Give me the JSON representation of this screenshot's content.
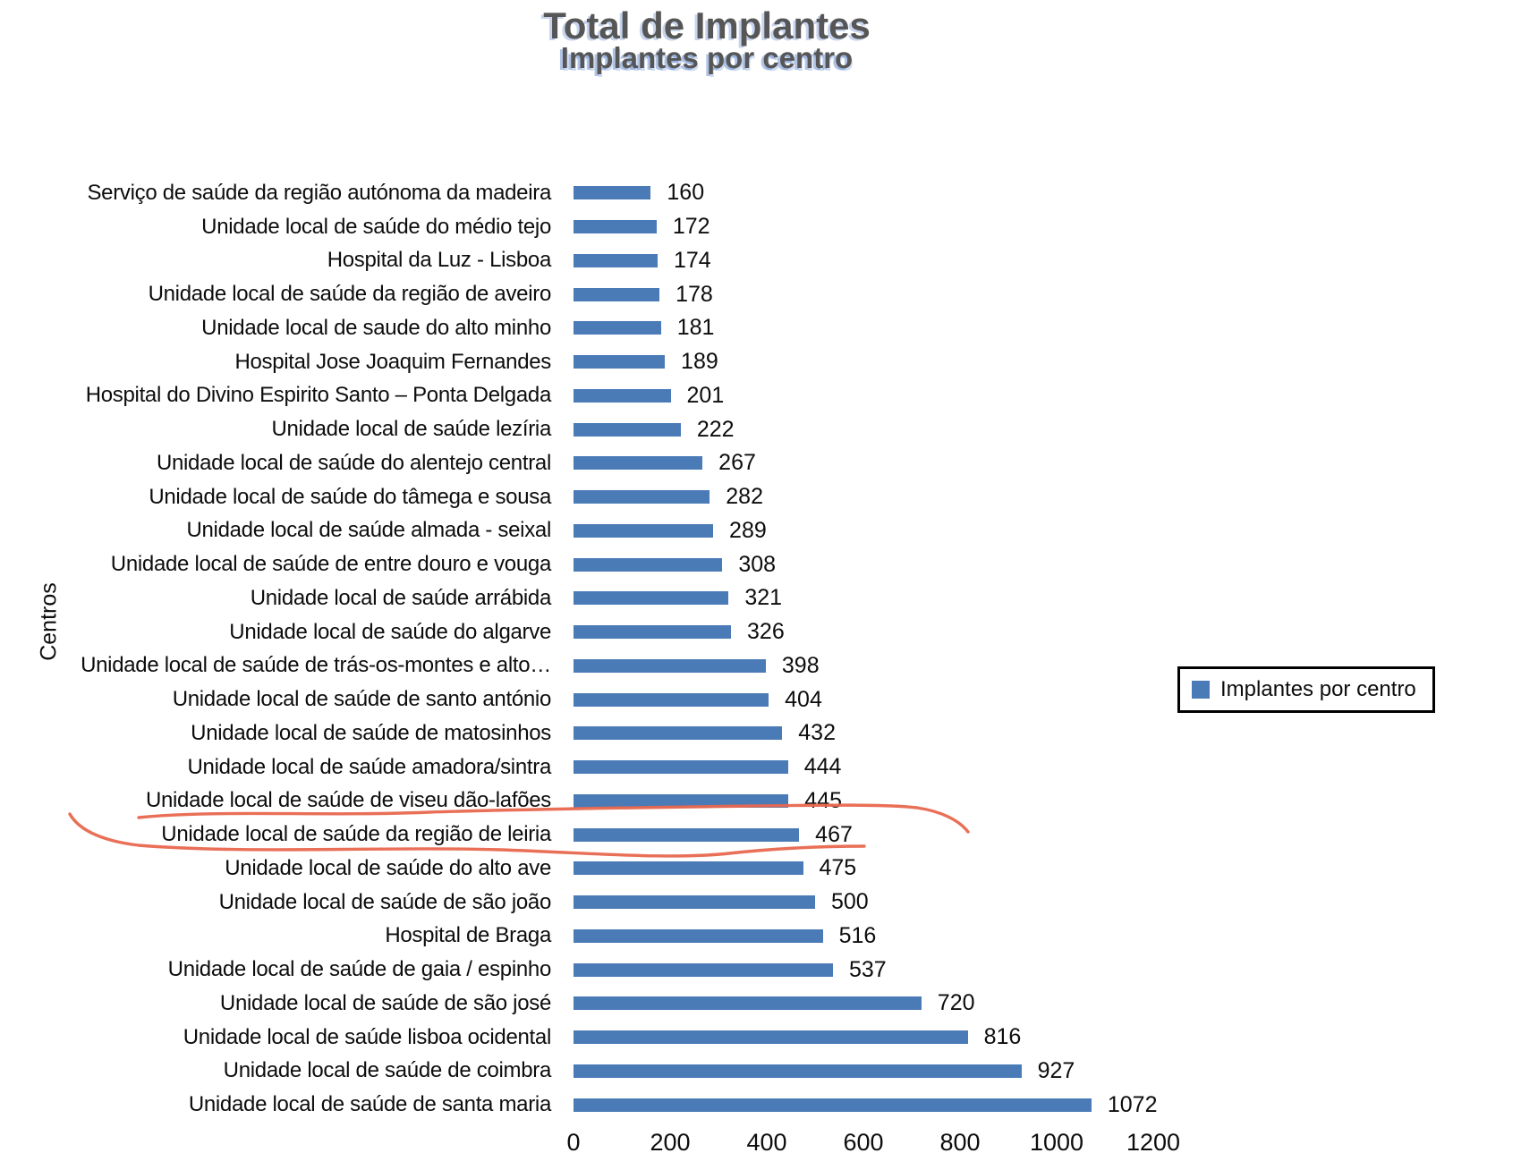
{
  "title": "Total de Implantes",
  "subtitle": "Implantes por centro",
  "y_axis_label": "Centros",
  "legend": {
    "label": "Implantes por centro"
  },
  "colors": {
    "bar": "#4A7BB7",
    "title_text": "#565656",
    "annotation": "#E8674E",
    "legend_border": "#000000"
  },
  "chart_data": {
    "type": "bar",
    "orientation": "horizontal",
    "title": "Total de Implantes",
    "subtitle": "Implantes por centro",
    "xlabel": "",
    "ylabel": "Centros",
    "xlim": [
      0,
      1200
    ],
    "x_ticks": [
      0,
      200,
      400,
      600,
      800,
      1000,
      1200
    ],
    "grid": false,
    "legend_entries": [
      "Implantes por centro"
    ],
    "legend_position": "right",
    "categories": [
      "Serviço de saúde da região autónoma da madeira",
      "Unidade local de saúde do  médio tejo",
      "Hospital da Luz - Lisboa",
      "Unidade local de saúde da região de aveiro",
      "Unidade local de saude do alto minho",
      "Hospital Jose Joaquim Fernandes",
      "Hospital do Divino Espirito Santo – Ponta Delgada",
      "Unidade local de saúde lezíria",
      "Unidade local de saúde do alentejo central",
      "Unidade local de saúde do tâmega e sousa",
      "Unidade local de saúde almada - seixal",
      "Unidade local de saúde de entre douro e vouga",
      "Unidade local de saúde arrábida",
      "Unidade local de saúde do algarve",
      "Unidade local de saúde de trás-os-montes e alto…",
      "Unidade local de saúde de santo antónio",
      "Unidade local de saúde de matosinhos",
      "Unidade local de saúde amadora/sintra",
      "Unidade local de saúde de viseu dão-lafões",
      "Unidade local de saúde da região de leiria",
      "Unidade local de saúde do alto ave",
      "Unidade local de saúde de são joão",
      "Hospital de Braga",
      "Unidade local de saúde de gaia / espinho",
      "Unidade local de saúde de são josé",
      "Unidade local de saúde lisboa ocidental",
      "Unidade local de saúde de coimbra",
      "Unidade local de saúde de santa maria"
    ],
    "values": [
      160,
      172,
      174,
      178,
      181,
      189,
      201,
      222,
      267,
      282,
      289,
      308,
      321,
      326,
      398,
      404,
      432,
      444,
      445,
      467,
      475,
      500,
      516,
      537,
      720,
      816,
      927,
      1072
    ],
    "annotation": {
      "type": "hand-drawn-red-circle",
      "target_category": "Unidade local de saúde da região de leiria",
      "target_value": 467,
      "row_index": 19
    }
  }
}
